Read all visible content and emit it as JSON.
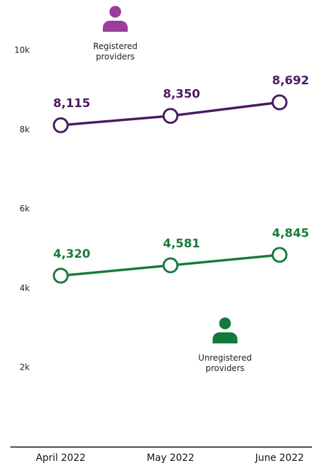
{
  "chart_data": {
    "type": "line",
    "categories": [
      "April 2022",
      "May 2022",
      "June 2022"
    ],
    "series": [
      {
        "name": "Registered providers",
        "color": "#4b1a5f",
        "icon_color": "#9a3e98",
        "values": [
          8115,
          8350,
          8692
        ],
        "value_labels": [
          "8,115",
          "8,350",
          "8,692"
        ]
      },
      {
        "name": "Unregistered providers",
        "color": "#187a3a",
        "icon_color": "#137a3a",
        "values": [
          4320,
          4581,
          4845
        ],
        "value_labels": [
          "4,320",
          "4,581",
          "4,845"
        ]
      }
    ],
    "ylim": [
      0,
      10000
    ],
    "yticks": [
      {
        "value": 2000,
        "label": "2k"
      },
      {
        "value": 4000,
        "label": "4k"
      },
      {
        "value": 6000,
        "label": "6k"
      },
      {
        "value": 8000,
        "label": "8k"
      },
      {
        "value": 10000,
        "label": "10k"
      }
    ]
  }
}
